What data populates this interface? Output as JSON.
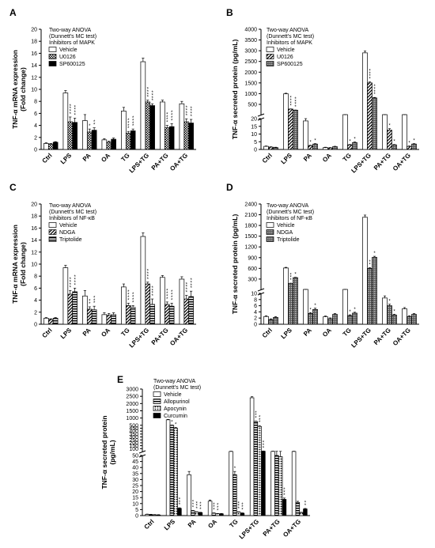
{
  "figure": {
    "categories": [
      "Ctrl",
      "LPS",
      "PA",
      "OA",
      "TG",
      "LPS+TG",
      "PA+TG",
      "OA+TG"
    ],
    "stats_note_line1": "Two-way ANOVA",
    "stats_note_line2": "(Dunnett's MC test)"
  },
  "chart_data": [
    {
      "panel": "A",
      "type": "bar",
      "ylabel_line1": "TNF-α mRNA expression",
      "ylabel_line2": "(Fold change)",
      "legend_title": "Inhibitors of MAPK",
      "ylim": [
        0,
        20
      ],
      "yticks": [
        0,
        2,
        4,
        6,
        8,
        10,
        12,
        14,
        16,
        18,
        20
      ],
      "categories": [
        "Ctrl",
        "LPS",
        "PA",
        "OA",
        "TG",
        "LPS+TG",
        "PA+TG",
        "OA+TG"
      ],
      "series": [
        {
          "name": "Vehicle",
          "values": [
            1.0,
            9.4,
            4.8,
            1.6,
            6.4,
            14.6,
            7.9,
            7.6
          ]
        },
        {
          "name": "U0126",
          "values": [
            0.9,
            4.6,
            2.9,
            1.2,
            2.7,
            7.9,
            3.6,
            4.6
          ]
        },
        {
          "name": "SP600125",
          "values": [
            1.2,
            4.5,
            3.2,
            1.7,
            3.1,
            7.3,
            3.8,
            4.4
          ]
        }
      ],
      "errors": [
        [
          0.1,
          0.4,
          1.0,
          0.2,
          0.6,
          0.6,
          0.3,
          0.4
        ],
        [
          0.1,
          0.8,
          0.5,
          0.2,
          0.3,
          0.3,
          0.4,
          0.5
        ],
        [
          0.1,
          0.7,
          0.4,
          0.2,
          0.3,
          0.3,
          0.5,
          0.6
        ]
      ],
      "sig": [
        [
          "",
          "",
          "",
          "",
          "",
          "",
          "",
          ""
        ],
        [
          "",
          "****",
          "*",
          "",
          "****",
          "****",
          "****",
          "****"
        ],
        [
          "",
          "****",
          "**",
          "",
          "****",
          "****",
          "****",
          "****"
        ]
      ]
    },
    {
      "panel": "B",
      "type": "bar",
      "broken_axis": true,
      "ylabel_line1": "TNF-α secreted protein (pg/mL)",
      "legend_title": "Inhibitors of MAPK",
      "low_range": [
        0,
        20
      ],
      "low_ticks": [
        0,
        5,
        10,
        15,
        20
      ],
      "high_range": [
        20,
        4000
      ],
      "high_ticks": [
        500,
        1000,
        1500,
        2000,
        2500,
        3000,
        3500,
        4000
      ],
      "categories": [
        "Ctrl",
        "LPS",
        "PA",
        "OA",
        "TG",
        "LPS+TG",
        "PA+TG",
        "OA+TG"
      ],
      "series": [
        {
          "name": "Vehicle",
          "values": [
            2.0,
            990,
            18.5,
            1.2,
            21,
            2900,
            21,
            21
          ]
        },
        {
          "name": "U0126",
          "values": [
            1.5,
            280,
            2.5,
            1.0,
            3.0,
            1500,
            12.5,
            2.0
          ]
        },
        {
          "name": "SP600125",
          "values": [
            1.2,
            230,
            3.5,
            1.8,
            4.5,
            800,
            3.0,
            3.5
          ]
        }
      ],
      "sig": [
        [
          "",
          "",
          "",
          "",
          "",
          "",
          "",
          ""
        ],
        [
          "",
          "****",
          "*",
          "",
          "*",
          "****",
          "*",
          "*"
        ],
        [
          "",
          "****",
          "*",
          "",
          "*",
          "****",
          "*",
          "*"
        ]
      ]
    },
    {
      "panel": "C",
      "type": "bar",
      "ylabel_line1": "TNF-α mRNA expression",
      "ylabel_line2": "(Fold change)",
      "legend_title": "Inhibitors of NF-κB",
      "ylim": [
        0,
        20
      ],
      "yticks": [
        0,
        2,
        4,
        6,
        8,
        10,
        12,
        14,
        16,
        18,
        20
      ],
      "categories": [
        "Ctrl",
        "LPS",
        "PA",
        "OA",
        "TG",
        "LPS+TG",
        "PA+TG",
        "OA+TG"
      ],
      "series": [
        {
          "name": "Vehicle",
          "values": [
            1.0,
            9.4,
            4.7,
            1.6,
            6.2,
            14.6,
            7.8,
            7.5
          ]
        },
        {
          "name": "NDGA",
          "values": [
            0.8,
            5.0,
            2.5,
            1.5,
            3.1,
            6.7,
            3.3,
            4.2
          ]
        },
        {
          "name": "Triptolide",
          "values": [
            1.0,
            5.4,
            2.4,
            1.6,
            2.8,
            3.3,
            3.0,
            4.6
          ]
        }
      ],
      "errors": [
        [
          0.1,
          0.4,
          0.9,
          0.3,
          0.5,
          0.6,
          0.3,
          0.4
        ],
        [
          0.1,
          0.6,
          0.4,
          0.3,
          0.4,
          0.3,
          0.4,
          0.6
        ],
        [
          0.1,
          0.6,
          0.6,
          0.3,
          0.3,
          0.9,
          0.5,
          0.9
        ]
      ],
      "sig": [
        [
          "",
          "",
          "",
          "",
          "",
          "",
          "",
          ""
        ],
        [
          "",
          "****",
          "**",
          "",
          "****",
          "****",
          "****",
          "****"
        ],
        [
          "",
          "****",
          "***",
          "",
          "****",
          "****",
          "****",
          "****"
        ]
      ]
    },
    {
      "panel": "D",
      "type": "bar",
      "broken_axis": true,
      "ylabel_line1": "TNF-α secreted protein (pg/mL)",
      "legend_title": "Inhibitors of NF-κB",
      "low_range": [
        0,
        10
      ],
      "low_ticks": [
        0,
        2,
        4,
        6,
        8,
        10
      ],
      "high_range": [
        10,
        2400
      ],
      "high_ticks": [
        300,
        600,
        900,
        1200,
        1500,
        1800,
        2100,
        2400
      ],
      "categories": [
        "Ctrl",
        "LPS",
        "PA",
        "OA",
        "TG",
        "LPS+TG",
        "PA+TG",
        "OA+TG"
      ],
      "series": [
        {
          "name": "Vehicle",
          "values": [
            2.5,
            610,
            10.2,
            2.4,
            10.2,
            2030,
            8.5,
            5.0
          ]
        },
        {
          "name": "NDGA",
          "values": [
            1.5,
            180,
            3.5,
            1.8,
            2.8,
            600,
            6.0,
            2.5
          ]
        },
        {
          "name": "Triptolide",
          "values": [
            2.2,
            340,
            4.8,
            3.2,
            3.6,
            910,
            3.0,
            3.2
          ]
        }
      ],
      "sig": [
        [
          "",
          "",
          "",
          "",
          "",
          "",
          "",
          ""
        ],
        [
          "",
          "***",
          "*",
          "",
          "*",
          "**",
          "*",
          ""
        ],
        [
          "",
          "*",
          "*",
          "",
          "*",
          "*",
          "*",
          ""
        ]
      ]
    },
    {
      "panel": "E",
      "type": "bar",
      "broken_axis": true,
      "ylabel_line1": "TNF-α secreted protein",
      "ylabel_line2": "(pg/mL)",
      "legend_title": "",
      "low_range": [
        0,
        50
      ],
      "low_ticks": [
        0,
        5,
        10,
        15,
        20,
        25,
        30,
        35,
        40,
        45,
        50
      ],
      "high_range": [
        50,
        3000
      ],
      "high_ticks": [
        100,
        150,
        200,
        250,
        300,
        350,
        400,
        450,
        500,
        1000,
        1500,
        2000,
        2500,
        3000
      ],
      "categories": [
        "Ctrl",
        "LPS",
        "PA",
        "OA",
        "TG",
        "LPS+TG",
        "PA+TG",
        "OA+TG"
      ],
      "series": [
        {
          "name": "Vehicle",
          "values": [
            1.0,
            880,
            34,
            12,
            51,
            2400,
            52,
            51
          ]
        },
        {
          "name": "Allopurinol",
          "values": [
            0.8,
            500,
            4.0,
            2.0,
            34,
            760,
            50,
            11
          ]
        },
        {
          "name": "Apocynin",
          "values": [
            0.6,
            450,
            3.0,
            1.5,
            3.0,
            480,
            49,
            2.5
          ]
        },
        {
          "name": "Curcumin",
          "values": [
            0.5,
            6.0,
            2.5,
            1.5,
            2.0,
            55,
            13.5,
            5.5
          ]
        }
      ],
      "sig": [
        [
          "",
          "",
          "",
          "",
          "",
          "",
          "",
          ""
        ],
        [
          "",
          "*",
          "***",
          "***",
          "*",
          "***",
          "",
          ""
        ],
        [
          "",
          "*",
          "***",
          "***",
          "***",
          "***",
          "",
          ""
        ],
        [
          "",
          "***",
          "***",
          "",
          "***",
          "***",
          "***",
          "**"
        ]
      ]
    }
  ]
}
